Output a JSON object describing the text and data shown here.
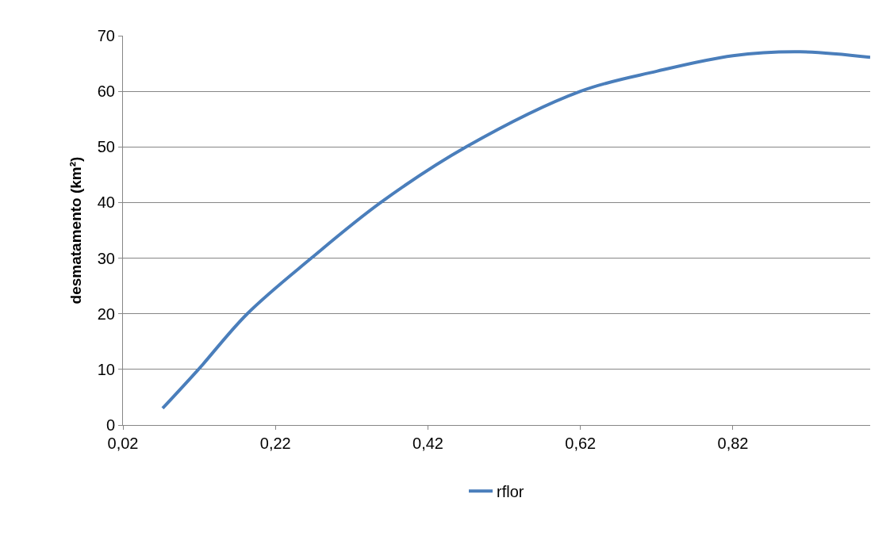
{
  "chart_data": {
    "type": "line",
    "ylabel": "desmatamento (km²)",
    "xlim": [
      0.02,
      1.0
    ],
    "xticks": [
      {
        "value": 0.02,
        "label": "0,02"
      },
      {
        "value": 0.22,
        "label": "0,22"
      },
      {
        "value": 0.42,
        "label": "0,42"
      },
      {
        "value": 0.62,
        "label": "0,62"
      },
      {
        "value": 0.82,
        "label": "0,82"
      }
    ],
    "ylim": [
      0,
      70
    ],
    "yticks": [
      0,
      10,
      20,
      30,
      40,
      50,
      60,
      70
    ],
    "grid": "y",
    "legend": "bottom",
    "marker": "none",
    "line_style": "solid",
    "series": [
      {
        "name": "rflor",
        "color": "#4a7ebb",
        "x": [
          0.072,
          0.119,
          0.183,
          0.267,
          0.358,
          0.47,
          0.62,
          0.72,
          0.82,
          0.908,
          1.0
        ],
        "values": [
          3,
          10,
          20,
          30,
          40,
          50,
          60,
          63.6,
          66.4,
          67.1,
          66.1
        ]
      }
    ]
  }
}
